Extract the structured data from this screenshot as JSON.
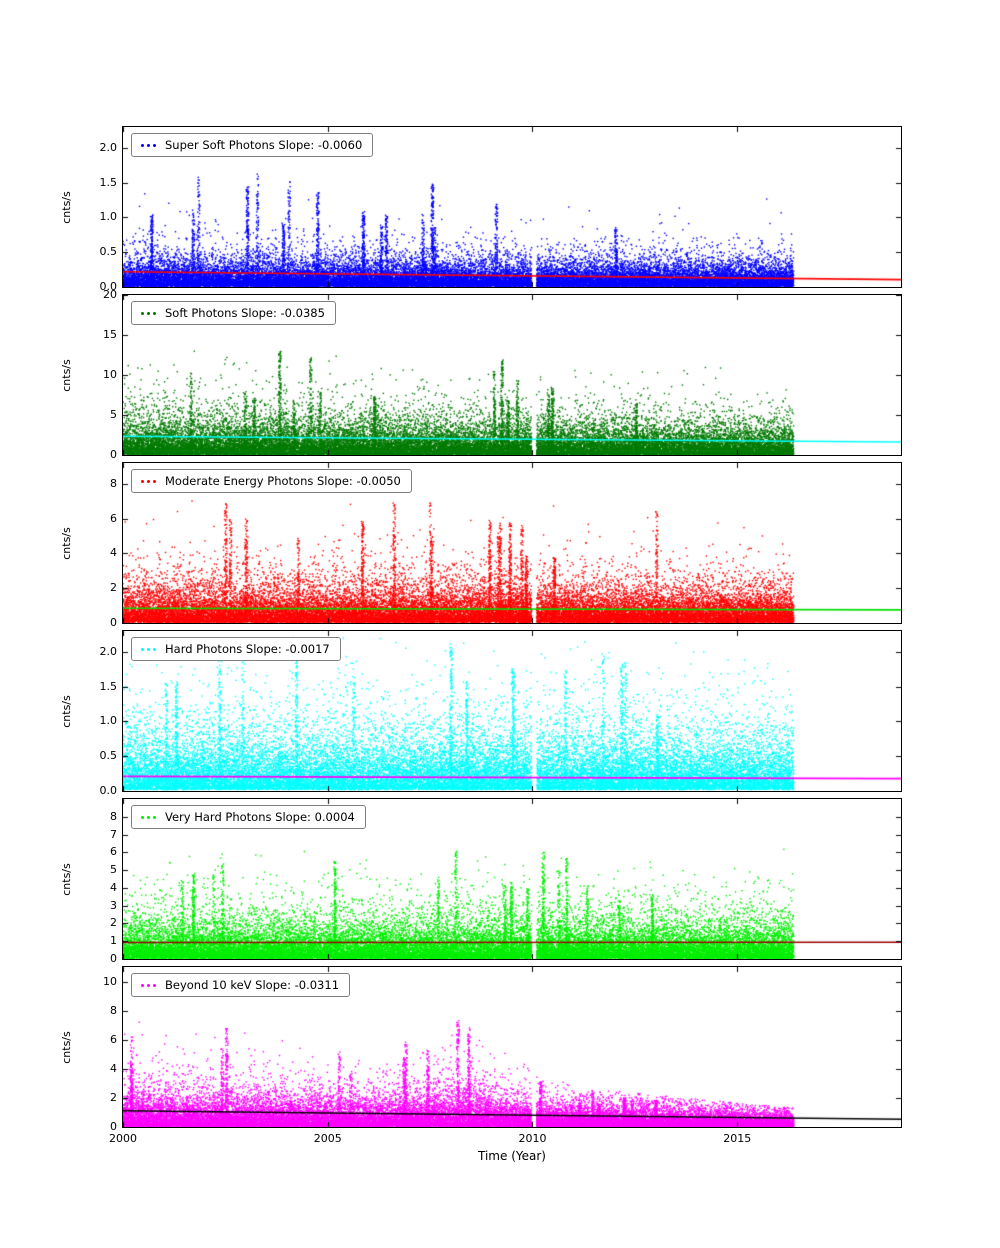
{
  "chart_data": {
    "type": "scatter",
    "title": "",
    "xlabel": "Time (Year)",
    "ylabel": "cnts/s",
    "x_range": [
      2000,
      2019
    ],
    "x_ticks": [
      2000,
      2005,
      2010,
      2015
    ],
    "x_tick_labels": [
      "2000",
      "2005",
      "2010",
      "2015"
    ],
    "data_start": 2000.0,
    "data_end": 2016.38,
    "data_gap": [
      2009.98,
      2010.1
    ],
    "panels": [
      {
        "name": "Super Soft Photons",
        "legend_label": "Super Soft Photons Slope: -0.0060",
        "slope": -0.006,
        "point_color": "#0000ff",
        "fit_color": "#ff0000",
        "fit_y_start": 0.22,
        "fit_y_end": 0.106,
        "y_max": 2.3,
        "y_ticks": [
          0,
          0.5,
          1,
          1.5,
          2
        ],
        "y_tick_labels": [
          "0.0",
          "0.5",
          "1.0",
          "1.5",
          "2.0"
        ],
        "band_mean": 0.14,
        "band_floor": 0.01,
        "spike_max": 1.7,
        "envelope_end": 0.85,
        "n_points": 26000,
        "n_flares": 16,
        "flare_power": 1,
        "seed": 101
      },
      {
        "name": "Soft Photons",
        "legend_label": "Soft Photons Slope: -0.0385",
        "slope": -0.0385,
        "point_color": "#007a00",
        "fit_color": "#00ffff",
        "fit_y_start": 2.35,
        "fit_y_end": 1.62,
        "y_max": 20,
        "y_ticks": [
          0,
          5,
          10,
          15,
          20
        ],
        "y_tick_labels": [
          "0",
          "5",
          "10",
          "15",
          "20"
        ],
        "band_mean": 1.7,
        "band_floor": 0.05,
        "spike_max": 14,
        "envelope_end": 0.75,
        "n_points": 26000,
        "n_flares": 15,
        "flare_power": 1,
        "seed": 202
      },
      {
        "name": "Moderate Energy Photons",
        "legend_label": "Moderate Energy Photons Slope: -0.0050",
        "slope": -0.005,
        "point_color": "#ff0000",
        "fit_color": "#00dd00",
        "fit_y_start": 0.85,
        "fit_y_end": 0.755,
        "y_max": 9.2,
        "y_ticks": [
          0,
          2,
          4,
          6,
          8
        ],
        "y_tick_labels": [
          "0",
          "2",
          "4",
          "6",
          "8"
        ],
        "band_mean": 0.78,
        "band_floor": 0.04,
        "spike_max": 7.6,
        "envelope_end": 0.9,
        "n_points": 26000,
        "n_flares": 16,
        "flare_power": 1,
        "seed": 303
      },
      {
        "name": "Hard Photons",
        "legend_label": "Hard Photons Slope: -0.0017",
        "slope": -0.0017,
        "point_color": "#00ffff",
        "fit_color": "#ff00ff",
        "fit_y_start": 0.21,
        "fit_y_end": 0.178,
        "y_max": 2.3,
        "y_ticks": [
          0,
          0.5,
          1,
          1.5,
          2
        ],
        "y_tick_labels": [
          "0.0",
          "0.5",
          "1.0",
          "1.5",
          "2.0"
        ],
        "band_mean": 0.3,
        "band_floor": 0.02,
        "spike_max": 2.25,
        "envelope_end": 0.95,
        "n_points": 24000,
        "n_flares": 14,
        "flare_power": 1,
        "seed": 404
      },
      {
        "name": "Very Hard Photons",
        "legend_label": "Very Hard Photons Slope: 0.0004",
        "slope": 0.0004,
        "point_color": "#00ee00",
        "fit_color": "#990000",
        "fit_y_start": 0.93,
        "fit_y_end": 0.94,
        "y_max": 9,
        "y_ticks": [
          0,
          1,
          2,
          3,
          4,
          5,
          6,
          7,
          8
        ],
        "y_tick_labels": [
          "0",
          "1",
          "2",
          "3",
          "4",
          "5",
          "6",
          "7",
          "8"
        ],
        "band_mean": 0.75,
        "band_floor": 0.03,
        "spike_max": 6.3,
        "envelope_end": 1.0,
        "n_points": 26000,
        "n_flares": 16,
        "flare_power": 1,
        "seed": 505
      },
      {
        "name": "Beyond 10 keV",
        "legend_label": "Beyond 10 keV Slope: -0.0311",
        "slope": -0.0311,
        "point_color": "#ff00ff",
        "fit_color": "#000000",
        "fit_y_start": 1.12,
        "fit_y_end": 0.53,
        "y_max": 11,
        "y_ticks": [
          0,
          2,
          4,
          6,
          8,
          10
        ],
        "y_tick_labels": [
          "0",
          "2",
          "4",
          "6",
          "8",
          "10"
        ],
        "band_mean": 0.9,
        "band_floor": 0.03,
        "spike_max": 8.2,
        "envelope_end": 0.4,
        "bump": {
          "amp": 0.35,
          "center": 2008.3,
          "sigma": 0.9
        },
        "n_points": 26000,
        "n_flares": 18,
        "flare_power": 2,
        "seed": 606
      }
    ]
  }
}
